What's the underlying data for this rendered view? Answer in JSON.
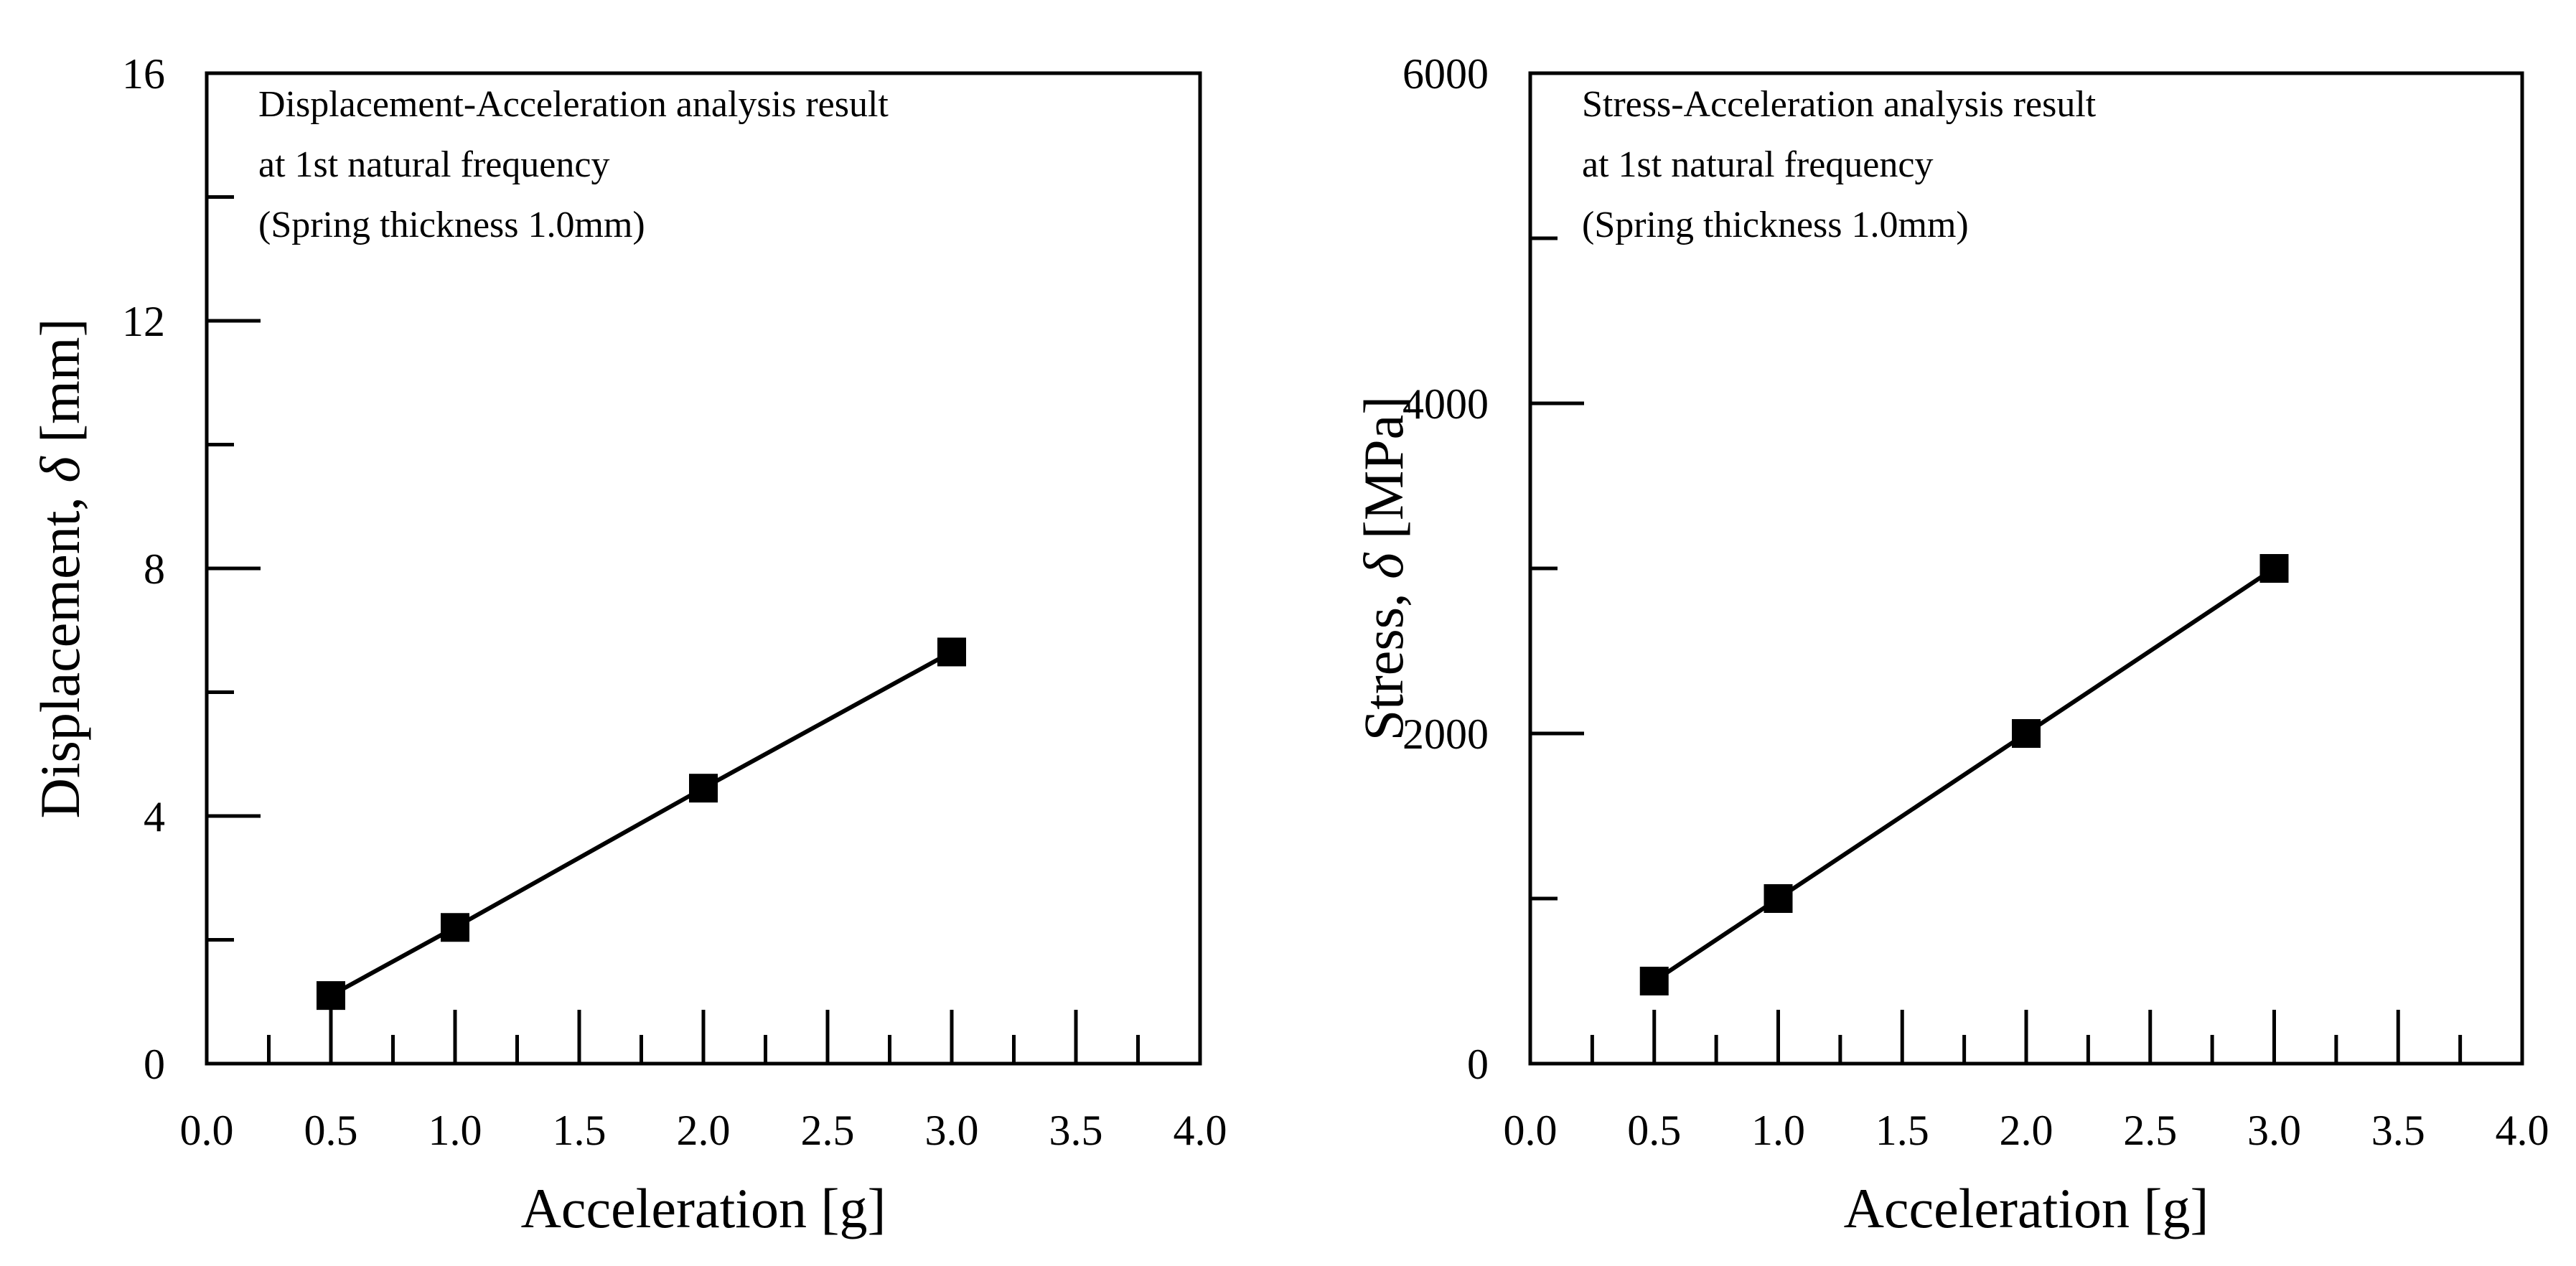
{
  "chart_data": [
    {
      "id": "left",
      "type": "line",
      "xlabel": "Acceleration [g]",
      "ylabel_prefix": "Displacement, ",
      "ylabel_symbol": "δ",
      "ylabel_suffix": " [mm]",
      "xlim": [
        0.0,
        4.0
      ],
      "ylim": [
        0,
        16
      ],
      "x_ticks": [
        0.0,
        0.5,
        1.0,
        1.5,
        2.0,
        2.5,
        3.0,
        3.5,
        4.0
      ],
      "x_tick_labels": [
        "0.0",
        "0.5",
        "1.0",
        "1.5",
        "2.0",
        "2.5",
        "3.0",
        "3.5",
        "4.0"
      ],
      "x_minor_ticks": [
        0.25,
        0.75,
        1.25,
        1.75,
        2.25,
        2.75,
        3.25,
        3.75
      ],
      "y_ticks": [
        0,
        4,
        8,
        12,
        16
      ],
      "y_tick_labels": [
        "0",
        "4",
        "8",
        "12",
        "16"
      ],
      "y_minor_ticks": [
        2,
        6,
        10,
        14
      ],
      "annotation": [
        "Displacement-Acceleration analysis result",
        "at 1st natural frequency",
        "(Spring thickness 1.0mm)"
      ],
      "series": [
        {
          "name": "Displacement",
          "marker": "square",
          "x": [
            0.5,
            1.0,
            2.0,
            3.0
          ],
          "y": [
            1.1,
            2.2,
            4.45,
            6.65
          ]
        }
      ]
    },
    {
      "id": "right",
      "type": "line",
      "xlabel": "Acceleration [g]",
      "ylabel_prefix": "Stress, ",
      "ylabel_symbol": "δ",
      "ylabel_suffix": " [MPa]",
      "xlim": [
        0.0,
        4.0
      ],
      "ylim": [
        0,
        6000
      ],
      "x_ticks": [
        0.0,
        0.5,
        1.0,
        1.5,
        2.0,
        2.5,
        3.0,
        3.5,
        4.0
      ],
      "x_tick_labels": [
        "0.0",
        "0.5",
        "1.0",
        "1.5",
        "2.0",
        "2.5",
        "3.0",
        "3.5",
        "4.0"
      ],
      "x_minor_ticks": [
        0.25,
        0.75,
        1.25,
        1.75,
        2.25,
        2.75,
        3.25,
        3.75
      ],
      "y_ticks": [
        0,
        2000,
        4000,
        6000
      ],
      "y_tick_labels": [
        "0",
        "2000",
        "4000",
        "6000"
      ],
      "y_minor_ticks": [
        1000,
        3000,
        5000
      ],
      "annotation": [
        "Stress-Acceleration analysis result",
        "at 1st natural frequency",
        "(Spring thickness 1.0mm)"
      ],
      "series": [
        {
          "name": "Stress",
          "marker": "square",
          "x": [
            0.5,
            1.0,
            2.0,
            3.0
          ],
          "y": [
            500,
            1000,
            2000,
            3000
          ]
        }
      ]
    }
  ]
}
